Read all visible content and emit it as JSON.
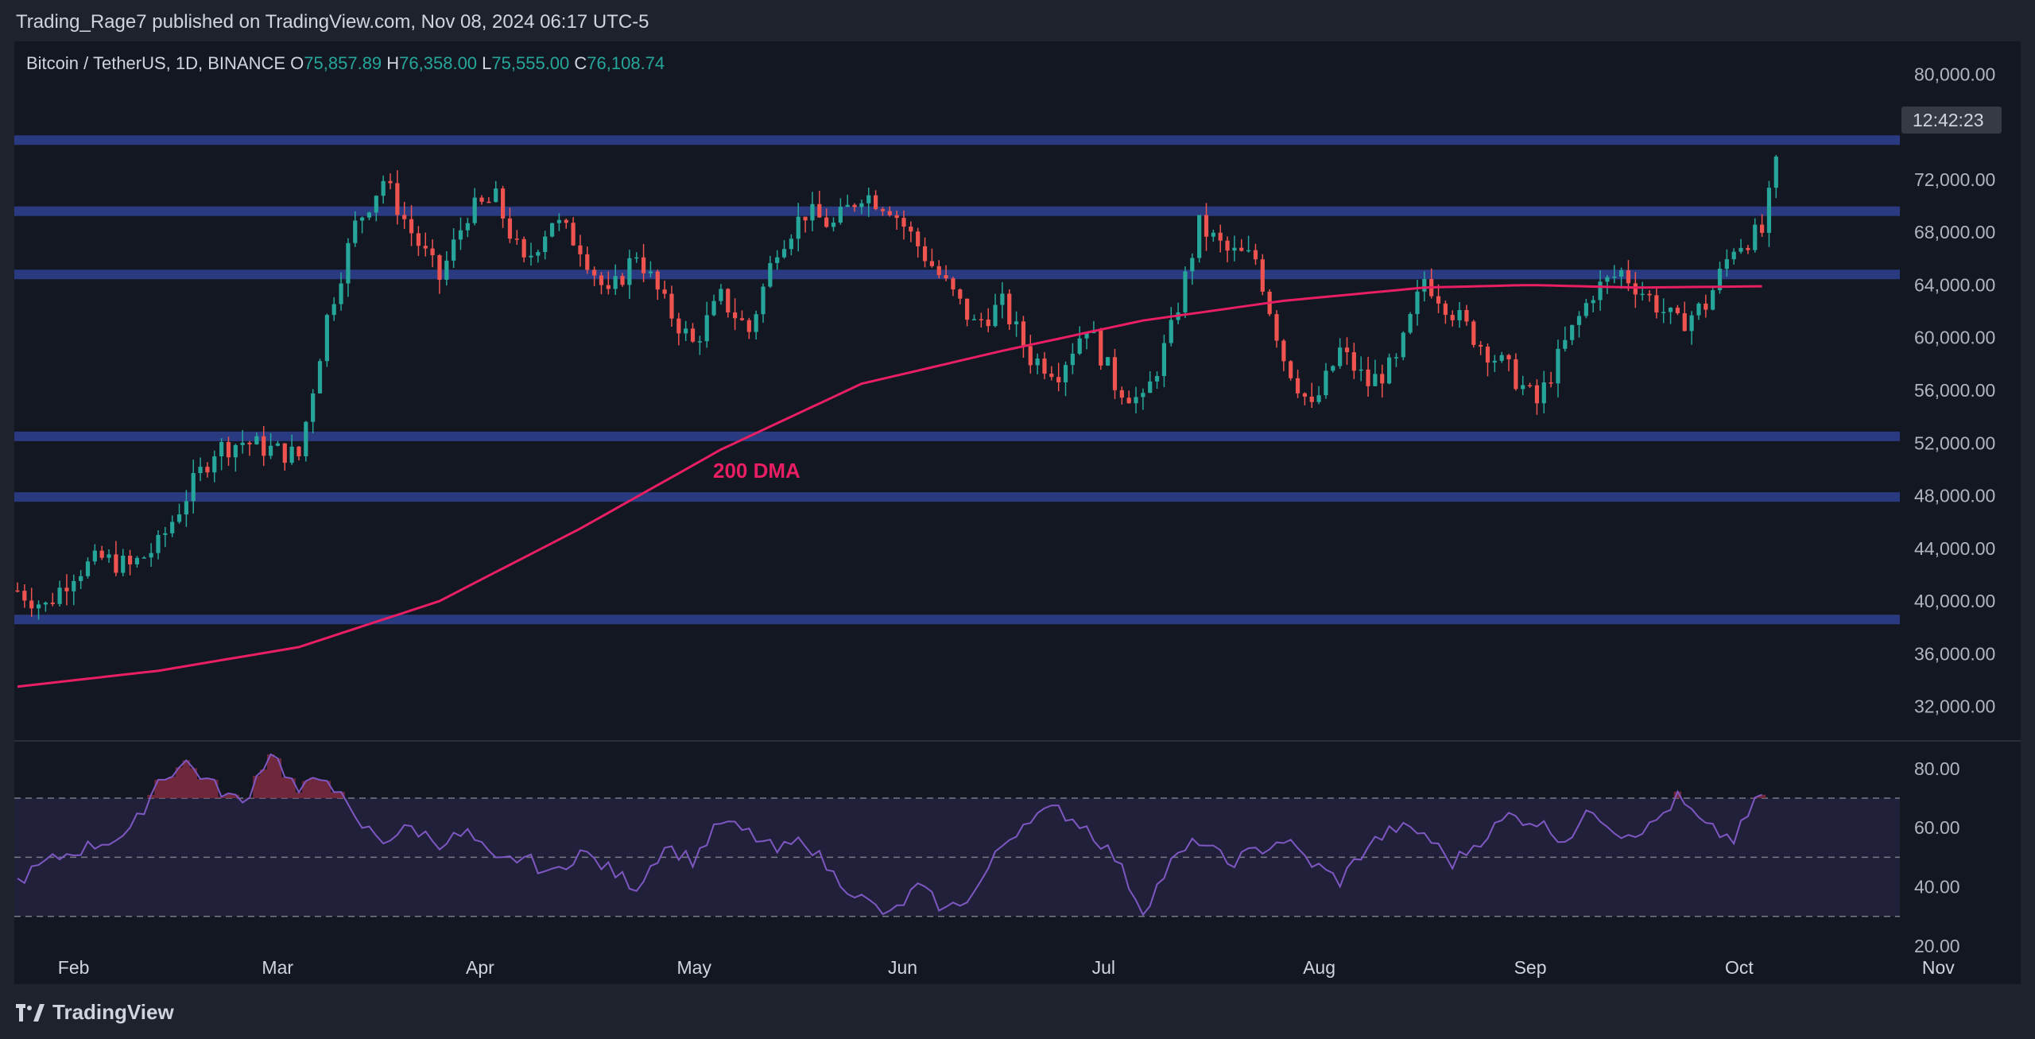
{
  "publisher_line": "Trading_Rage7 published on TradingView.com, Nov 08, 2024 06:17 UTC-5",
  "brand": "TradingView",
  "colors": {
    "background": "#131722",
    "frame": "#1e222d",
    "up": "#26a69a",
    "down": "#ef5350",
    "dma": "#e91e63",
    "level_band": "#2a3a80",
    "rsi": "#7e57c2",
    "rsi_band": "#21203a"
  },
  "chart_data": [
    {
      "type": "candlestick",
      "symbol": "Bitcoin / TetherUS, 1D, BINANCE",
      "ohlc_last": {
        "open": "75,857.89",
        "high": "76,358.00",
        "low": "75,555.00",
        "close": "76,108.74"
      },
      "legend": {
        "symbol_text": "Bitcoin / TetherUS, 1D, BINANCE",
        "o_label": "O",
        "o": "75,857.89",
        "h_label": "H",
        "h": "76,358.00",
        "l_label": "L",
        "l": "75,555.00",
        "c_label": "C",
        "c": "76,108.74"
      },
      "countdown": "12:42:23",
      "y_axis": {
        "ticks": [
          "80,000.00",
          "72,000.00",
          "68,000.00",
          "64,000.00",
          "60,000.00",
          "56,000.00",
          "52,000.00",
          "48,000.00",
          "44,000.00",
          "40,000.00",
          "36,000.00",
          "32,000.00"
        ],
        "range": [
          29500,
          82500
        ]
      },
      "x_axis": {
        "labels": [
          "Feb",
          "Mar",
          "Apr",
          "May",
          "Jun",
          "Jul",
          "Aug",
          "Sep",
          "Oct",
          "Nov"
        ]
      },
      "horizontal_levels": [
        75000,
        69600,
        64800,
        52500,
        47900,
        38600
      ],
      "annotation": "200 DMA",
      "series": [
        {
          "name": "200 DMA",
          "points": [
            [
              0,
              33500
            ],
            [
              20,
              34700
            ],
            [
              40,
              36500
            ],
            [
              60,
              40000
            ],
            [
              80,
              45500
            ],
            [
              100,
              51500
            ],
            [
              120,
              56500
            ],
            [
              140,
              59000
            ],
            [
              160,
              61300
            ],
            [
              180,
              62800
            ],
            [
              200,
              63800
            ],
            [
              215,
              64000
            ],
            [
              230,
              63800
            ],
            [
              248,
              63900
            ]
          ]
        }
      ],
      "candles_close_anchor": [
        [
          0,
          40800
        ],
        [
          4,
          39600
        ],
        [
          8,
          42200
        ],
        [
          12,
          43200
        ],
        [
          16,
          42600
        ],
        [
          20,
          44200
        ],
        [
          24,
          48000
        ],
        [
          28,
          51500
        ],
        [
          32,
          52100
        ],
        [
          36,
          51500
        ],
        [
          40,
          51000
        ],
        [
          44,
          61500
        ],
        [
          48,
          68500
        ],
        [
          52,
          72000
        ],
        [
          56,
          68000
        ],
        [
          60,
          64500
        ],
        [
          64,
          69500
        ],
        [
          68,
          70500
        ],
        [
          72,
          65500
        ],
        [
          76,
          69000
        ],
        [
          80,
          67000
        ],
        [
          84,
          63000
        ],
        [
          88,
          66500
        ],
        [
          92,
          62500
        ],
        [
          96,
          59500
        ],
        [
          100,
          63000
        ],
        [
          104,
          60500
        ],
        [
          108,
          67000
        ],
        [
          112,
          69500
        ],
        [
          116,
          68500
        ],
        [
          120,
          71000
        ],
        [
          124,
          70000
        ],
        [
          128,
          67000
        ],
        [
          132,
          64000
        ],
        [
          136,
          61000
        ],
        [
          140,
          62500
        ],
        [
          144,
          58500
        ],
        [
          148,
          57500
        ],
        [
          152,
          61000
        ],
        [
          156,
          56500
        ],
        [
          160,
          55000
        ],
        [
          164,
          60500
        ],
        [
          168,
          68500
        ],
        [
          172,
          66500
        ],
        [
          176,
          66000
        ],
        [
          180,
          58500
        ],
        [
          184,
          54500
        ],
        [
          188,
          59000
        ],
        [
          192,
          56500
        ],
        [
          196,
          58000
        ],
        [
          200,
          64500
        ],
        [
          204,
          62000
        ],
        [
          208,
          59500
        ],
        [
          212,
          57500
        ],
        [
          216,
          55000
        ],
        [
          220,
          59500
        ],
        [
          224,
          63500
        ],
        [
          228,
          65000
        ],
        [
          232,
          63000
        ],
        [
          236,
          61000
        ],
        [
          240,
          62500
        ],
        [
          244,
          67000
        ],
        [
          248,
          68000
        ],
        [
          250,
          73000
        ]
      ]
    },
    {
      "type": "line",
      "name": "RSI",
      "y_axis": {
        "ticks": [
          "80.00",
          "60.00",
          "40.00",
          "20.00"
        ],
        "range": [
          20,
          88
        ],
        "upper": 70,
        "middle": 50,
        "lower": 30
      },
      "series": [
        {
          "name": "RSI",
          "points": [
            [
              0,
              42
            ],
            [
              4,
              48
            ],
            [
              8,
              52
            ],
            [
              12,
              55
            ],
            [
              16,
              58
            ],
            [
              20,
              76
            ],
            [
              24,
              82
            ],
            [
              28,
              74
            ],
            [
              32,
              68
            ],
            [
              36,
              86
            ],
            [
              40,
              72
            ],
            [
              44,
              78
            ],
            [
              48,
              62
            ],
            [
              52,
              56
            ],
            [
              56,
              60
            ],
            [
              60,
              55
            ],
            [
              64,
              58
            ],
            [
              68,
              48
            ],
            [
              72,
              50
            ],
            [
              76,
              44
            ],
            [
              80,
              52
            ],
            [
              84,
              46
            ],
            [
              88,
              40
            ],
            [
              92,
              54
            ],
            [
              96,
              49
            ],
            [
              100,
              62
            ],
            [
              104,
              58
            ],
            [
              108,
              52
            ],
            [
              112,
              56
            ],
            [
              116,
              44
            ],
            [
              120,
              36
            ],
            [
              124,
              30
            ],
            [
              128,
              40
            ],
            [
              132,
              32
            ],
            [
              136,
              38
            ],
            [
              140,
              54
            ],
            [
              144,
              64
            ],
            [
              148,
              66
            ],
            [
              152,
              60
            ],
            [
              156,
              50
            ],
            [
              160,
              32
            ],
            [
              164,
              48
            ],
            [
              168,
              56
            ],
            [
              172,
              48
            ],
            [
              176,
              52
            ],
            [
              180,
              56
            ],
            [
              184,
              48
            ],
            [
              188,
              42
            ],
            [
              192,
              54
            ],
            [
              196,
              60
            ],
            [
              200,
              58
            ],
            [
              204,
              48
            ],
            [
              208,
              56
            ],
            [
              212,
              64
            ],
            [
              216,
              62
            ],
            [
              220,
              56
            ],
            [
              224,
              66
            ],
            [
              228,
              58
            ],
            [
              232,
              60
            ],
            [
              236,
              70
            ],
            [
              240,
              60
            ],
            [
              244,
              56
            ],
            [
              248,
              72
            ]
          ]
        }
      ]
    }
  ]
}
